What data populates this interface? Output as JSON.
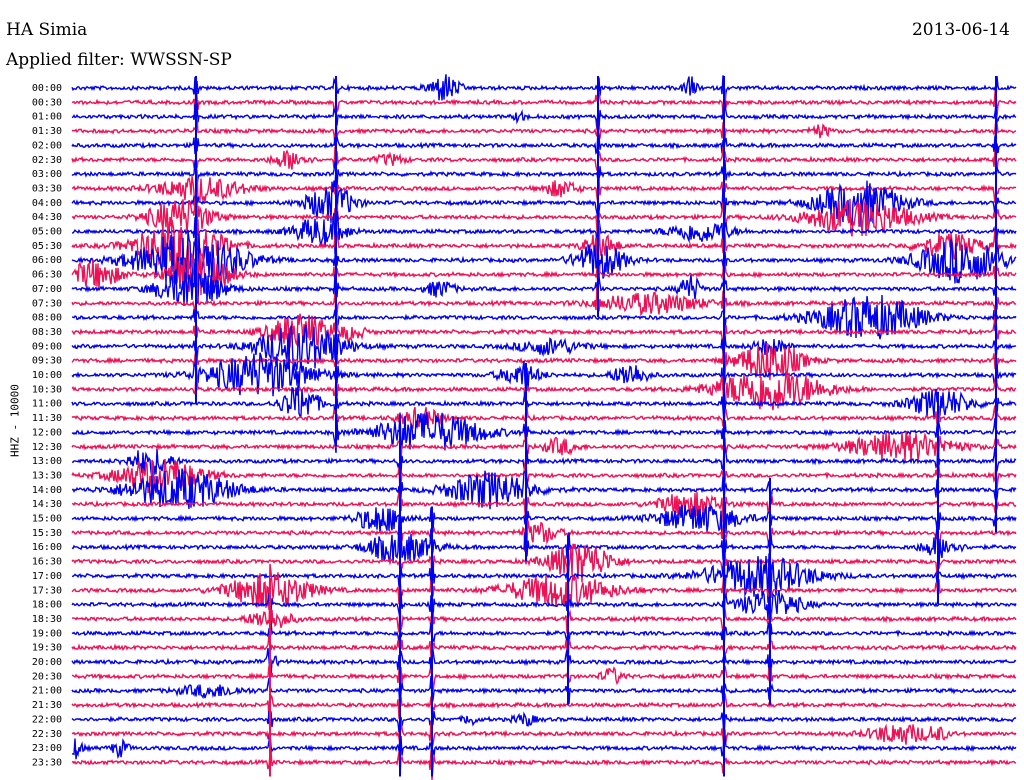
{
  "header": {
    "station": "HA Simia",
    "date": "2013-06-14",
    "filter": "Applied filter: WWSSN-SP"
  },
  "chart_data": {
    "type": "line",
    "ylabel": "HHZ - 10000",
    "trace_colors": [
      "#0000ee",
      "#ee1155"
    ],
    "row_labels": [
      "00:00",
      "00:30",
      "01:00",
      "01:30",
      "02:00",
      "02:30",
      "03:00",
      "03:30",
      "04:00",
      "04:30",
      "05:00",
      "05:30",
      "06:00",
      "06:30",
      "07:00",
      "07:30",
      "08:00",
      "08:30",
      "09:00",
      "09:30",
      "10:00",
      "10:30",
      "11:00",
      "11:30",
      "12:00",
      "12:30",
      "13:00",
      "13:30",
      "14:00",
      "14:30",
      "15:00",
      "15:30",
      "16:00",
      "16:30",
      "17:00",
      "17:30",
      "18:00",
      "18:30",
      "19:00",
      "19:30",
      "20:00",
      "20:30",
      "21:00",
      "21:30",
      "22:00",
      "22:30",
      "23:00",
      "23:30"
    ],
    "minutes_per_row": 30
  }
}
